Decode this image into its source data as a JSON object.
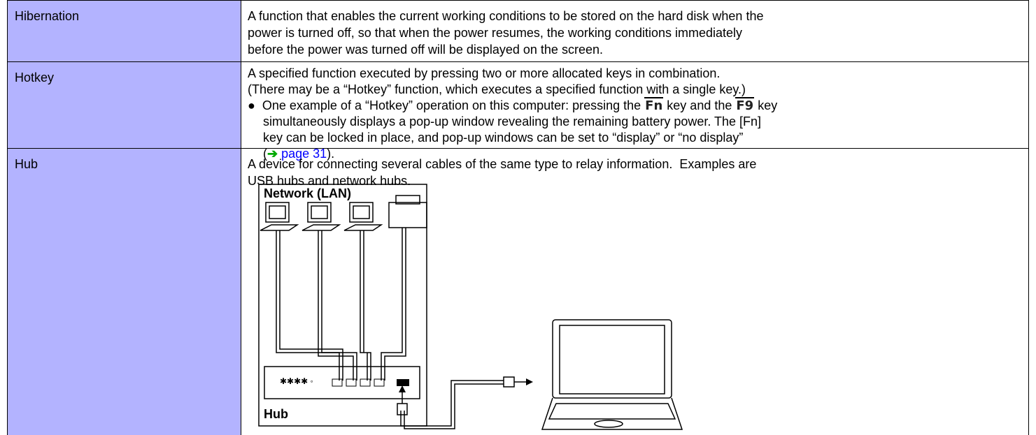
{
  "table": {
    "rows": [
      {
        "term": "Hibernation",
        "lines": [
          "A function that enables the current working conditions to be stored on the hard disk when the",
          "power is turned off, so that when the power resumes, the working conditions immediately",
          "before the power was turned off will be displayed on the screen."
        ]
      },
      {
        "term": "Hotkey",
        "lines": [
          "A specified function executed by pressing two or more allocated keys in combination.",
          "(There may be a “Hotkey” function, which executes a specified function with a single key.)"
        ],
        "bullet": {
          "lead": "One example of a “Hotkey” operation on this computer: pressing the ",
          "key1": "Fn",
          "mid": " key and the ",
          "key2": "F9",
          "tail": " key",
          "lines": [
            "simultaneously displays a pop-up window revealing the remaining battery power. The [Fn]",
            "key can be locked in place, and pop-up windows can be set to “display” or “no display”"
          ],
          "open": "(",
          "link": "page 31",
          "close": ")."
        }
      },
      {
        "term": "Hub",
        "lines": [
          "A device for connecting several cables of the same type to relay information.  Examples are",
          "USB hubs and network hubs."
        ],
        "diagram": {
          "network_label": "Network (LAN)",
          "hub_label": "Hub"
        }
      }
    ]
  }
}
